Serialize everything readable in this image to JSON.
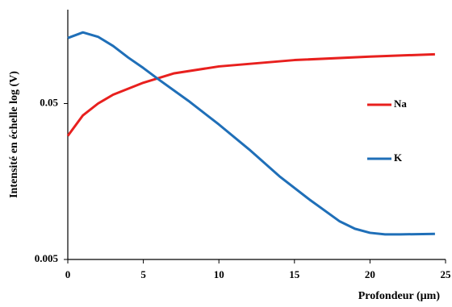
{
  "chart_data": {
    "type": "line",
    "y_label": "Intensité en échelle log (V)",
    "x_label": "Profondeur (µm)",
    "xlim": [
      0,
      25
    ],
    "xticks": [
      0,
      5,
      10,
      15,
      20,
      25
    ],
    "ylim": [
      0.005,
      0.2
    ],
    "yticks": [
      0.005,
      0.05
    ],
    "log_y": true,
    "grid": false,
    "legend": "right",
    "series": [
      {
        "name": "Na",
        "color": "#e8201e",
        "x": [
          0,
          1,
          2,
          3,
          5,
          7,
          10,
          15,
          20,
          24.3
        ],
        "values": [
          0.031,
          0.042,
          0.05,
          0.057,
          0.068,
          0.078,
          0.0865,
          0.095,
          0.1,
          0.1035
        ]
      },
      {
        "name": "K",
        "color": "#1f6fb8",
        "x": [
          0,
          1,
          2,
          3,
          4,
          5,
          6,
          8,
          10,
          12,
          14,
          16,
          18,
          19,
          20,
          21,
          22,
          24.3
        ],
        "values": [
          0.1316,
          0.143,
          0.134,
          0.117,
          0.0986,
          0.0845,
          0.0715,
          0.0519,
          0.0367,
          0.0254,
          0.0171,
          0.0121,
          0.00877,
          0.00787,
          0.00741,
          0.00724,
          0.00724,
          0.0073
        ]
      }
    ]
  }
}
